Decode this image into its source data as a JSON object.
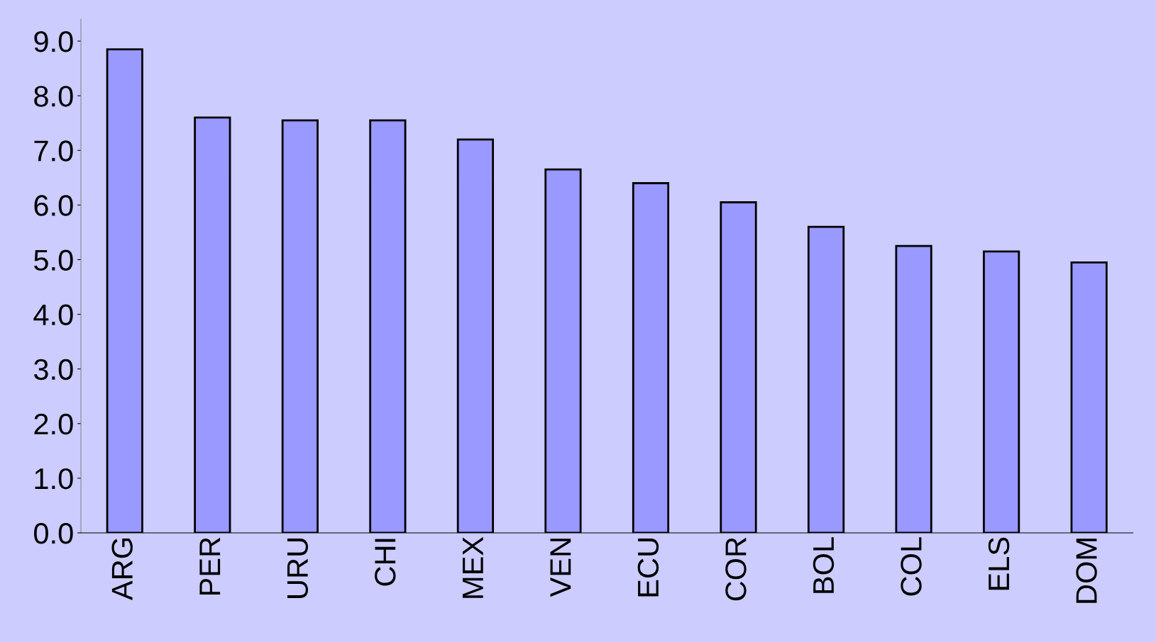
{
  "chart_data": {
    "type": "bar",
    "categories": [
      "ARG",
      "PER",
      "URU",
      "CHI",
      "MEX",
      "VEN",
      "ECU",
      "COR",
      "BOL",
      "COL",
      "ELS",
      "DOM"
    ],
    "values": [
      8.85,
      7.6,
      7.55,
      7.55,
      7.2,
      6.65,
      6.4,
      6.05,
      5.6,
      5.25,
      5.15,
      4.95
    ],
    "color": "#9999ff",
    "ylim": [
      0,
      9.4
    ],
    "yticks": [
      {
        "value": 0,
        "label": "0.0"
      },
      {
        "value": 1,
        "label": "1.0"
      },
      {
        "value": 2,
        "label": "2.0"
      },
      {
        "value": 3,
        "label": "3.0"
      },
      {
        "value": 4,
        "label": "4.0"
      },
      {
        "value": 5,
        "label": "5.0"
      },
      {
        "value": 6,
        "label": "6.0"
      },
      {
        "value": 7,
        "label": "7.0"
      },
      {
        "value": 8,
        "label": "8.0"
      },
      {
        "value": 9,
        "label": "9.0"
      }
    ],
    "grid": false
  }
}
